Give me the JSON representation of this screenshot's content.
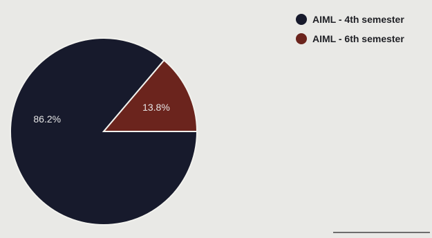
{
  "chart_data": {
    "type": "pie",
    "title": "",
    "slices": [
      {
        "label": "AIML - 4th semester",
        "value": 86.2,
        "display": "86.2%",
        "color": "#171a2c"
      },
      {
        "label": "AIML - 6th semester",
        "value": 13.8,
        "display": "13.8%",
        "color": "#6b241d"
      }
    ],
    "legend_placement": "top-right",
    "start_angle_deg": 0
  }
}
